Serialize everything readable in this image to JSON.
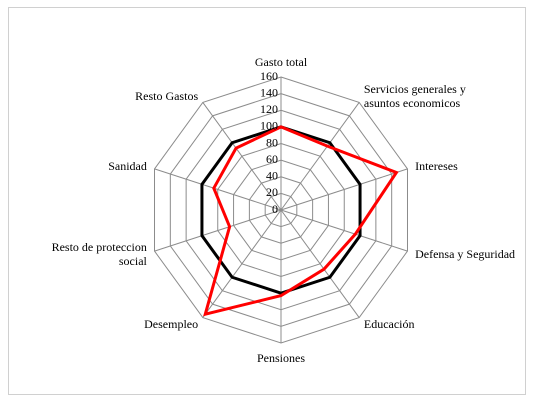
{
  "chart_data": {
    "type": "radar",
    "categories": [
      "Gasto total",
      "Servicios generales y asuntos economicos",
      "Intereses",
      "Defensa y Seguridad",
      "Educación",
      "Pensiones",
      "Desempleo",
      "Resto de proteccion social",
      "Sanidad",
      "Resto Gastos"
    ],
    "series": [
      {
        "color": "#000000",
        "values": [
          100,
          100,
          100,
          100,
          100,
          100,
          100,
          100,
          100,
          100
        ]
      },
      {
        "color": "#ff0000",
        "values": [
          100,
          95,
          146,
          94,
          88,
          103,
          155,
          65,
          85,
          92
        ]
      }
    ],
    "ylim": [
      0,
      160
    ],
    "yticks": [
      0,
      20,
      40,
      60,
      80,
      100,
      120,
      140,
      160
    ],
    "grid": true
  }
}
